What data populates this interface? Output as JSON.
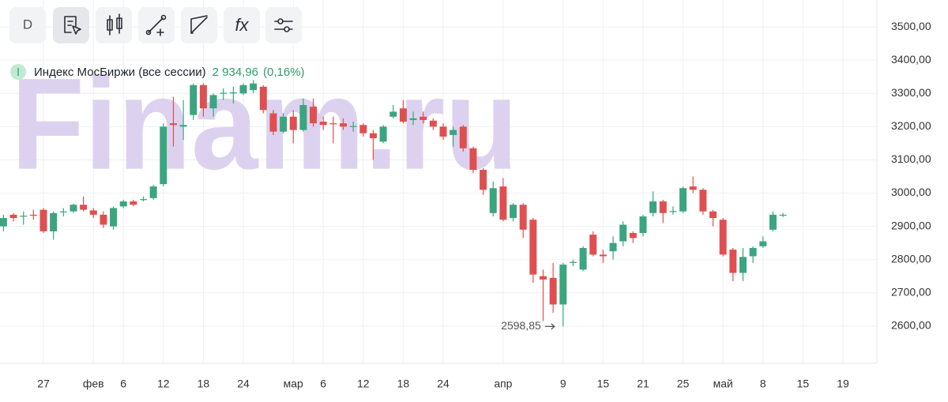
{
  "toolbar": {
    "interval": "D",
    "formula": "fx"
  },
  "chart_data": {
    "type": "candlestick",
    "watermark": "Finam.ru",
    "name": "Индекс МосБиржи (все сессии)",
    "last": {
      "value": 2934.96,
      "label": "2 934,96"
    },
    "change": {
      "value": 0.16,
      "label": "(0,16%)"
    },
    "min_label": {
      "value": 2598.85,
      "label": "2598,85"
    },
    "up_color": "#3ba57f",
    "down_color": "#e04f50",
    "grid": true,
    "categories": [
      null,
      null,
      null,
      null,
      "27",
      null,
      null,
      null,
      null,
      "фев",
      null,
      null,
      "6",
      null,
      null,
      null,
      "12",
      null,
      null,
      null,
      "18",
      null,
      null,
      null,
      "24",
      null,
      null,
      null,
      null,
      "мар",
      null,
      null,
      "6",
      null,
      null,
      null,
      "12",
      null,
      null,
      null,
      "18",
      null,
      null,
      null,
      "24",
      null,
      null,
      null,
      null,
      null,
      "апр",
      null,
      null,
      null,
      null,
      null,
      "9",
      null,
      null,
      null,
      "15",
      null,
      null,
      null,
      "21",
      null,
      null,
      null,
      "25",
      null,
      null,
      null,
      "май",
      null,
      null,
      null,
      "8",
      null,
      null,
      null,
      "15",
      null,
      null,
      null,
      "19"
    ],
    "open": [
      2900,
      2935,
      2930,
      2935,
      2950,
      2885,
      2943,
      2945,
      2965,
      2948,
      2935,
      2900,
      2960,
      2975,
      2980,
      2985,
      3027,
      3210,
      3200,
      3235,
      3325,
      3255,
      3300,
      3300,
      3300,
      3310,
      3320,
      3240,
      3185,
      3230,
      3190,
      3260,
      3215,
      3210,
      3210,
      3200,
      3205,
      3180,
      3155,
      3230,
      3255,
      3220,
      3230,
      3218,
      3200,
      3175,
      3200,
      3135,
      3070,
      2940,
      3020,
      2925,
      2965,
      2920,
      2750,
      2745,
      2665,
      2790,
      2770,
      2875,
      2815,
      2825,
      2855,
      2880,
      2880,
      2940,
      2975,
      2945,
      2945,
      3020,
      3010,
      2945,
      2920,
      2830,
      2760,
      2810,
      2840,
      2890,
      2934,
      null,
      null,
      null,
      null,
      null,
      null
    ],
    "high": [
      2935,
      2940,
      2945,
      2950,
      2955,
      2945,
      2955,
      2968,
      2990,
      2955,
      2945,
      2960,
      2980,
      2980,
      2990,
      3025,
      3210,
      3290,
      3280,
      3330,
      3330,
      3300,
      3315,
      3320,
      3330,
      3340,
      3325,
      3250,
      3240,
      3250,
      3285,
      3285,
      3230,
      3230,
      3225,
      3215,
      3210,
      3190,
      3205,
      3265,
      3280,
      3245,
      3245,
      3225,
      3210,
      3200,
      3205,
      3140,
      3075,
      3035,
      3045,
      2970,
      2970,
      2925,
      2770,
      2790,
      2790,
      2800,
      2840,
      2885,
      2830,
      2870,
      2915,
      2885,
      2935,
      3005,
      2980,
      2960,
      3020,
      3050,
      3015,
      2950,
      2925,
      2835,
      2835,
      2840,
      2870,
      2945,
      2940,
      null,
      null,
      null,
      null,
      null,
      null
    ],
    "low": [
      2885,
      2915,
      2905,
      2920,
      2880,
      2860,
      2930,
      2940,
      2945,
      2925,
      2895,
      2890,
      2955,
      2960,
      2975,
      2980,
      3020,
      3140,
      3160,
      3220,
      3230,
      3230,
      3280,
      3270,
      3295,
      3300,
      3240,
      3175,
      3180,
      3150,
      3185,
      3200,
      3190,
      3150,
      3190,
      3185,
      3170,
      3100,
      3150,
      3225,
      3210,
      3205,
      3210,
      3190,
      3160,
      3140,
      3125,
      3060,
      2995,
      2930,
      2915,
      2915,
      2865,
      2730,
      2615,
      2640,
      2598.85,
      2780,
      2765,
      2810,
      2790,
      2800,
      2840,
      2850,
      2870,
      2930,
      2910,
      2935,
      2940,
      3000,
      2935,
      2900,
      2810,
      2735,
      2735,
      2790,
      2835,
      2885,
      2928,
      null,
      null,
      null,
      null,
      null,
      null
    ],
    "close": [
      2925,
      2925,
      2932,
      2932,
      2885,
      2940,
      2945,
      2965,
      2950,
      2935,
      2905,
      2955,
      2975,
      2965,
      2982,
      3020,
      3200,
      3205,
      3205,
      3325,
      3255,
      3295,
      3302,
      3303,
      3325,
      3330,
      3250,
      3185,
      3230,
      3190,
      3265,
      3210,
      3205,
      3208,
      3200,
      3202,
      3180,
      3165,
      3200,
      3245,
      3215,
      3225,
      3220,
      3200,
      3170,
      3190,
      3135,
      3070,
      3010,
      3015,
      2920,
      2965,
      2890,
      2755,
      2740,
      2665,
      2785,
      2793,
      2835,
      2815,
      2810,
      2850,
      2905,
      2865,
      2930,
      2975,
      2940,
      2946,
      3015,
      3010,
      2945,
      2925,
      2815,
      2760,
      2808,
      2835,
      2855,
      2935,
      2934.96,
      null,
      null,
      null,
      null,
      null,
      null
    ],
    "ylim": [
      2488,
      3581
    ],
    "yticks": [
      {
        "value": 2600,
        "label": "2600,00"
      },
      {
        "value": 2700,
        "label": "2700,00"
      },
      {
        "value": 2800,
        "label": "2800,00"
      },
      {
        "value": 2900,
        "label": "2900,00"
      },
      {
        "value": 3000,
        "label": "3000,00"
      },
      {
        "value": 3100,
        "label": "3100,00"
      },
      {
        "value": 3200,
        "label": "3200,00"
      },
      {
        "value": 3300,
        "label": "3300,00"
      },
      {
        "value": 3400,
        "label": "3400,00"
      },
      {
        "value": 3500,
        "label": "3500,00"
      }
    ]
  }
}
